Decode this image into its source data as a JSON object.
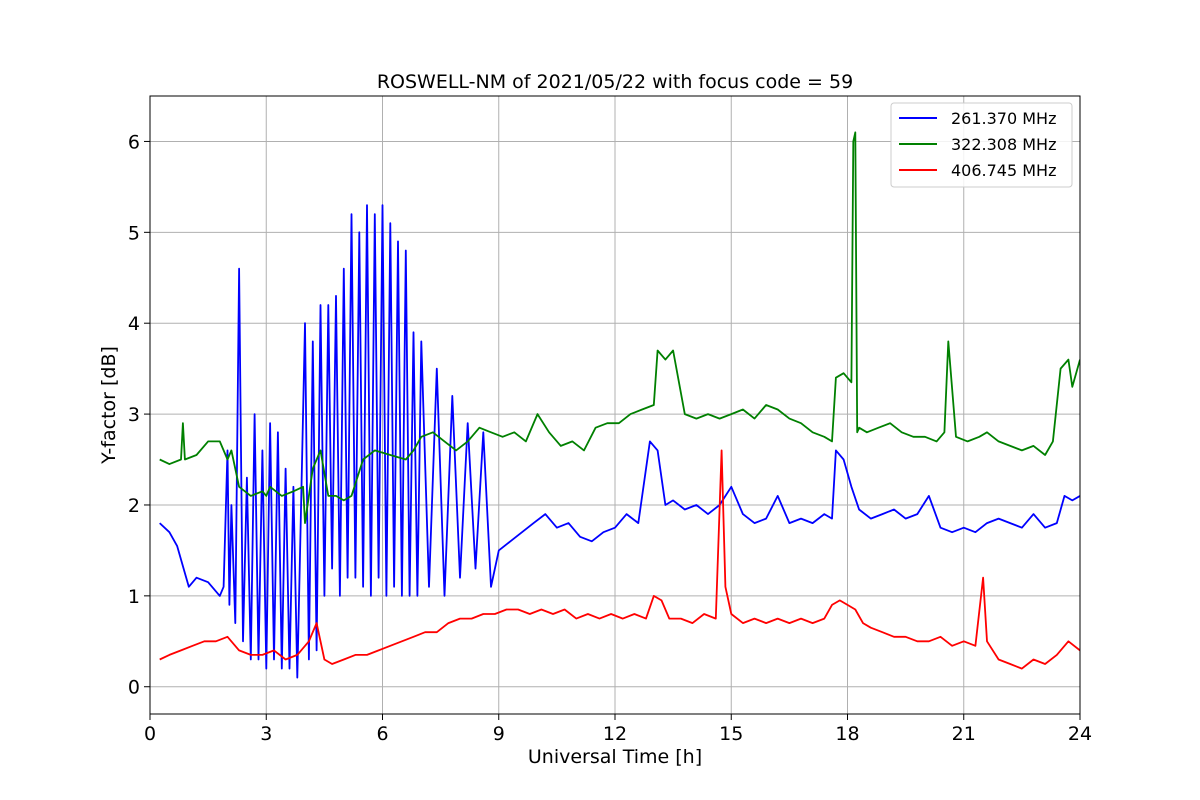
{
  "chart_data": {
    "type": "line",
    "title": "ROSWELL-NM of 2021/05/22 with focus code = 59",
    "xlabel": "Universal Time [h]",
    "ylabel": "Y-factor [dB]",
    "xlim": [
      0,
      24
    ],
    "ylim": [
      -0.3,
      6.5
    ],
    "xticks": [
      0,
      3,
      6,
      9,
      12,
      15,
      18,
      21,
      24
    ],
    "xtick_labels": [
      "0",
      "3",
      "6",
      "9",
      "12",
      "15",
      "18",
      "21",
      "24"
    ],
    "yticks": [
      0,
      1,
      2,
      3,
      4,
      5,
      6
    ],
    "ytick_labels": [
      "0",
      "1",
      "2",
      "3",
      "4",
      "5",
      "6"
    ],
    "grid": true,
    "legend_position": "top-right",
    "series": [
      {
        "name": "261.370 MHz",
        "color": "#0000ff",
        "x": [
          0.25,
          0.5,
          0.7,
          0.9,
          1.0,
          1.2,
          1.5,
          1.8,
          1.9,
          2.0,
          2.05,
          2.1,
          2.2,
          2.3,
          2.4,
          2.5,
          2.6,
          2.7,
          2.8,
          2.9,
          3.0,
          3.1,
          3.2,
          3.3,
          3.4,
          3.5,
          3.6,
          3.7,
          3.8,
          3.9,
          4.0,
          4.1,
          4.2,
          4.3,
          4.4,
          4.5,
          4.6,
          4.7,
          4.8,
          4.9,
          5.0,
          5.1,
          5.2,
          5.3,
          5.4,
          5.5,
          5.6,
          5.7,
          5.8,
          5.9,
          6.0,
          6.1,
          6.2,
          6.3,
          6.4,
          6.5,
          6.6,
          6.7,
          6.8,
          6.9,
          7.0,
          7.2,
          7.4,
          7.6,
          7.8,
          8.0,
          8.2,
          8.4,
          8.6,
          8.8,
          9.0,
          9.3,
          9.6,
          9.9,
          10.2,
          10.5,
          10.8,
          11.1,
          11.4,
          11.7,
          12.0,
          12.3,
          12.6,
          12.9,
          13.1,
          13.3,
          13.5,
          13.8,
          14.1,
          14.4,
          14.7,
          15.0,
          15.3,
          15.6,
          15.9,
          16.2,
          16.5,
          16.8,
          17.1,
          17.4,
          17.6,
          17.7,
          17.9,
          18.1,
          18.3,
          18.6,
          18.9,
          19.2,
          19.5,
          19.8,
          20.1,
          20.4,
          20.7,
          21.0,
          21.3,
          21.6,
          21.9,
          22.2,
          22.5,
          22.8,
          23.1,
          23.4,
          23.6,
          23.8,
          24.0
        ],
        "values": [
          1.8,
          1.7,
          1.55,
          1.25,
          1.1,
          1.2,
          1.15,
          1.0,
          1.1,
          2.6,
          0.9,
          2.0,
          0.7,
          4.6,
          0.5,
          2.3,
          0.3,
          3.0,
          0.3,
          2.6,
          0.2,
          2.9,
          0.3,
          2.8,
          0.2,
          2.4,
          0.2,
          2.2,
          0.1,
          2.0,
          4.0,
          0.3,
          3.8,
          0.4,
          4.2,
          1.0,
          4.2,
          1.3,
          4.3,
          1.0,
          4.6,
          1.2,
          5.2,
          1.2,
          5.0,
          1.1,
          5.3,
          1.0,
          5.2,
          1.2,
          5.3,
          1.0,
          5.1,
          1.1,
          4.9,
          1.0,
          4.8,
          1.0,
          3.9,
          1.0,
          3.8,
          1.1,
          3.5,
          1.0,
          3.2,
          1.2,
          2.9,
          1.3,
          2.8,
          1.1,
          1.5,
          1.6,
          1.7,
          1.8,
          1.9,
          1.75,
          1.8,
          1.65,
          1.6,
          1.7,
          1.75,
          1.9,
          1.8,
          2.7,
          2.6,
          2.0,
          2.05,
          1.95,
          2.0,
          1.9,
          2.0,
          2.2,
          1.9,
          1.8,
          1.85,
          2.1,
          1.8,
          1.85,
          1.8,
          1.9,
          1.85,
          2.6,
          2.5,
          2.2,
          1.95,
          1.85,
          1.9,
          1.95,
          1.85,
          1.9,
          2.1,
          1.75,
          1.7,
          1.75,
          1.7,
          1.8,
          1.85,
          1.8,
          1.75,
          1.9,
          1.75,
          1.8,
          2.1,
          2.05,
          2.1
        ]
      },
      {
        "name": "322.308 MHz",
        "color": "#008000",
        "x": [
          0.25,
          0.5,
          0.8,
          0.85,
          0.9,
          1.2,
          1.5,
          1.8,
          2.0,
          2.1,
          2.3,
          2.6,
          2.9,
          3.0,
          3.1,
          3.4,
          3.7,
          3.95,
          4.0,
          4.2,
          4.4,
          4.6,
          4.8,
          5.0,
          5.2,
          5.5,
          5.8,
          6.2,
          6.6,
          6.8,
          7.0,
          7.3,
          7.6,
          7.9,
          8.2,
          8.5,
          8.8,
          9.1,
          9.4,
          9.7,
          10.0,
          10.3,
          10.6,
          10.9,
          11.2,
          11.5,
          11.8,
          12.1,
          12.4,
          12.7,
          13.0,
          13.1,
          13.3,
          13.5,
          13.8,
          14.1,
          14.4,
          14.7,
          15.0,
          15.3,
          15.6,
          15.9,
          16.2,
          16.5,
          16.8,
          17.1,
          17.4,
          17.6,
          17.7,
          17.9,
          18.1,
          18.15,
          18.2,
          18.25,
          18.3,
          18.5,
          18.8,
          19.1,
          19.4,
          19.7,
          20.0,
          20.3,
          20.5,
          20.6,
          20.8,
          21.1,
          21.4,
          21.6,
          21.9,
          22.2,
          22.5,
          22.8,
          23.1,
          23.3,
          23.5,
          23.7,
          23.8,
          24.0
        ],
        "values": [
          2.5,
          2.45,
          2.5,
          2.9,
          2.5,
          2.55,
          2.7,
          2.7,
          2.5,
          2.6,
          2.2,
          2.1,
          2.15,
          2.1,
          2.2,
          2.1,
          2.15,
          2.2,
          1.8,
          2.4,
          2.6,
          2.1,
          2.1,
          2.05,
          2.1,
          2.5,
          2.6,
          2.55,
          2.5,
          2.6,
          2.75,
          2.8,
          2.7,
          2.6,
          2.7,
          2.85,
          2.8,
          2.75,
          2.8,
          2.7,
          3.0,
          2.8,
          2.65,
          2.7,
          2.6,
          2.85,
          2.9,
          2.9,
          3.0,
          3.05,
          3.1,
          3.7,
          3.6,
          3.7,
          3.0,
          2.95,
          3.0,
          2.95,
          3.0,
          3.05,
          2.95,
          3.1,
          3.05,
          2.95,
          2.9,
          2.8,
          2.75,
          2.7,
          3.4,
          3.45,
          3.35,
          6.0,
          6.1,
          2.8,
          2.85,
          2.8,
          2.85,
          2.9,
          2.8,
          2.75,
          2.75,
          2.7,
          2.8,
          3.8,
          2.75,
          2.7,
          2.75,
          2.8,
          2.7,
          2.65,
          2.6,
          2.65,
          2.55,
          2.7,
          3.5,
          3.6,
          3.3,
          3.6
        ]
      },
      {
        "name": "406.745 MHz",
        "color": "#ff0000",
        "x": [
          0.25,
          0.5,
          0.8,
          1.1,
          1.4,
          1.7,
          2.0,
          2.3,
          2.6,
          2.9,
          3.2,
          3.5,
          3.8,
          4.1,
          4.3,
          4.5,
          4.7,
          5.0,
          5.3,
          5.6,
          5.9,
          6.2,
          6.5,
          6.8,
          7.1,
          7.4,
          7.7,
          8.0,
          8.3,
          8.6,
          8.9,
          9.2,
          9.5,
          9.8,
          10.1,
          10.4,
          10.7,
          11.0,
          11.3,
          11.6,
          11.9,
          12.2,
          12.5,
          12.8,
          13.0,
          13.2,
          13.4,
          13.7,
          14.0,
          14.3,
          14.6,
          14.75,
          14.85,
          15.0,
          15.3,
          15.6,
          15.9,
          16.2,
          16.5,
          16.8,
          17.1,
          17.4,
          17.6,
          17.8,
          18.0,
          18.2,
          18.4,
          18.6,
          18.9,
          19.2,
          19.5,
          19.8,
          20.1,
          20.4,
          20.7,
          21.0,
          21.3,
          21.5,
          21.6,
          21.9,
          22.2,
          22.5,
          22.8,
          23.1,
          23.4,
          23.7,
          24.0
        ],
        "values": [
          0.3,
          0.35,
          0.4,
          0.45,
          0.5,
          0.5,
          0.55,
          0.4,
          0.35,
          0.35,
          0.4,
          0.3,
          0.35,
          0.5,
          0.7,
          0.3,
          0.25,
          0.3,
          0.35,
          0.35,
          0.4,
          0.45,
          0.5,
          0.55,
          0.6,
          0.6,
          0.7,
          0.75,
          0.75,
          0.8,
          0.8,
          0.85,
          0.85,
          0.8,
          0.85,
          0.8,
          0.85,
          0.75,
          0.8,
          0.75,
          0.8,
          0.75,
          0.8,
          0.75,
          1.0,
          0.95,
          0.75,
          0.75,
          0.7,
          0.8,
          0.75,
          2.6,
          1.1,
          0.8,
          0.7,
          0.75,
          0.7,
          0.75,
          0.7,
          0.75,
          0.7,
          0.75,
          0.9,
          0.95,
          0.9,
          0.85,
          0.7,
          0.65,
          0.6,
          0.55,
          0.55,
          0.5,
          0.5,
          0.55,
          0.45,
          0.5,
          0.45,
          1.2,
          0.5,
          0.3,
          0.25,
          0.2,
          0.3,
          0.25,
          0.35,
          0.5,
          0.4
        ]
      }
    ]
  }
}
